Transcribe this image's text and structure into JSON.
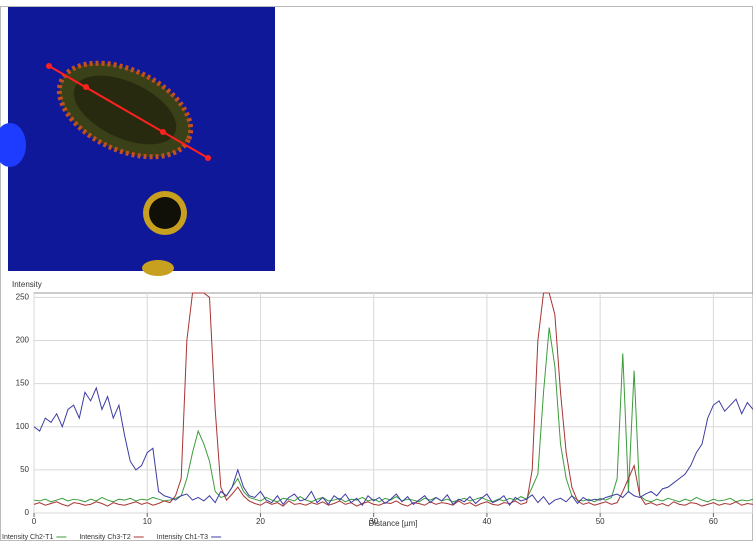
{
  "chart_data": {
    "type": "line",
    "ylabel": "Intensity",
    "xlabel": "Distance [µm]",
    "xlim": [
      0,
      63.5
    ],
    "ylim": [
      0,
      255
    ],
    "xticks": [
      0,
      10,
      20,
      30,
      40,
      50,
      60
    ],
    "yticks": [
      0,
      50,
      100,
      150,
      200,
      250
    ],
    "grid": true,
    "x": [
      0,
      0.5,
      1,
      1.5,
      2,
      2.5,
      3,
      3.5,
      4,
      4.5,
      5,
      5.5,
      6,
      6.5,
      7,
      7.5,
      8,
      8.5,
      9,
      9.5,
      10,
      10.5,
      11,
      11.5,
      12,
      12.5,
      13,
      13.5,
      14,
      14.5,
      15,
      15.5,
      16,
      16.5,
      17,
      17.5,
      18,
      18.5,
      19,
      19.5,
      20,
      20.5,
      21,
      21.5,
      22,
      22.5,
      23,
      23.5,
      24,
      24.5,
      25,
      25.5,
      26,
      26.5,
      27,
      27.5,
      28,
      28.5,
      29,
      29.5,
      30,
      30.5,
      31,
      31.5,
      32,
      32.5,
      33,
      33.5,
      34,
      34.5,
      35,
      35.5,
      36,
      36.5,
      37,
      37.5,
      38,
      38.5,
      39,
      39.5,
      40,
      40.5,
      41,
      41.5,
      42,
      42.5,
      43,
      43.5,
      44,
      44.5,
      45,
      45.5,
      46,
      46.5,
      47,
      47.5,
      48,
      48.5,
      49,
      49.5,
      50,
      50.5,
      51,
      51.5,
      52,
      52.5,
      53,
      53.5,
      54,
      54.5,
      55,
      55.5,
      56,
      56.5,
      57,
      57.5,
      58,
      58.5,
      59,
      59.5,
      60,
      60.5,
      61,
      61.5,
      62,
      62.5,
      63,
      63.5
    ],
    "series": [
      {
        "name": "Intensity Ch2-T1",
        "color": "#3c9c3c",
        "values": [
          15,
          14,
          16,
          13,
          15,
          17,
          14,
          16,
          15,
          13,
          16,
          14,
          18,
          15,
          13,
          16,
          15,
          17,
          14,
          16,
          15,
          18,
          16,
          14,
          15,
          17,
          20,
          40,
          70,
          95,
          80,
          60,
          25,
          18,
          20,
          30,
          40,
          25,
          18,
          16,
          14,
          18,
          15,
          13,
          17,
          16,
          14,
          19,
          15,
          13,
          16,
          18,
          14,
          15,
          17,
          13,
          16,
          15,
          18,
          14,
          16,
          13,
          17,
          15,
          19,
          14,
          16,
          15,
          13,
          17,
          15,
          18,
          14,
          16,
          13,
          15,
          17,
          14,
          16,
          18,
          15,
          13,
          16,
          14,
          17,
          15,
          19,
          16,
          30,
          45,
          140,
          215,
          170,
          80,
          40,
          20,
          15,
          14,
          16,
          13,
          17,
          15,
          18,
          40,
          185,
          25,
          165,
          20,
          15,
          13,
          16,
          14,
          17,
          15,
          13,
          16,
          14,
          18,
          15,
          13,
          16,
          14,
          15,
          17,
          13,
          15,
          14,
          16
        ]
      },
      {
        "name": "Intensity Ch3-T2",
        "color": "#a83434",
        "values": [
          10,
          12,
          9,
          11,
          13,
          10,
          8,
          12,
          11,
          9,
          10,
          13,
          11,
          8,
          12,
          10,
          9,
          11,
          13,
          10,
          12,
          9,
          11,
          14,
          12,
          20,
          40,
          200,
          255,
          255,
          255,
          250,
          120,
          30,
          15,
          22,
          30,
          20,
          14,
          11,
          9,
          13,
          10,
          12,
          8,
          14,
          10,
          11,
          9,
          12,
          10,
          13,
          9,
          11,
          14,
          10,
          12,
          8,
          11,
          13,
          10,
          9,
          12,
          11,
          14,
          10,
          8,
          12,
          11,
          9,
          13,
          10,
          12,
          11,
          9,
          14,
          10,
          12,
          8,
          11,
          13,
          10,
          9,
          12,
          11,
          14,
          10,
          12,
          50,
          200,
          255,
          255,
          230,
          140,
          70,
          30,
          14,
          10,
          12,
          9,
          11,
          13,
          10,
          12,
          25,
          40,
          55,
          20,
          10,
          12,
          9,
          11,
          8,
          13,
          10,
          9,
          12,
          11,
          8,
          10,
          12,
          9,
          11,
          10,
          13,
          9,
          11,
          10
        ]
      },
      {
        "name": "Intensity Ch1-T3",
        "color": "#3c3ca4",
        "values": [
          100,
          95,
          110,
          105,
          115,
          100,
          120,
          125,
          110,
          140,
          130,
          145,
          120,
          135,
          110,
          125,
          90,
          60,
          50,
          55,
          70,
          75,
          25,
          20,
          18,
          15,
          20,
          22,
          15,
          18,
          14,
          20,
          12,
          25,
          20,
          30,
          50,
          30,
          20,
          18,
          25,
          15,
          12,
          20,
          10,
          18,
          22,
          14,
          16,
          25,
          12,
          18,
          10,
          20,
          15,
          22,
          12,
          17,
          9,
          20,
          14,
          18,
          11,
          16,
          22,
          13,
          19,
          10,
          15,
          20,
          12,
          18,
          14,
          21,
          10,
          16,
          13,
          19,
          11,
          17,
          22,
          12,
          15,
          20,
          9,
          18,
          14,
          16,
          21,
          12,
          19,
          10,
          15,
          17,
          13,
          20,
          11,
          18,
          14,
          16,
          15,
          18,
          20,
          22,
          18,
          25,
          20,
          18,
          22,
          25,
          20,
          28,
          30,
          35,
          40,
          45,
          55,
          70,
          80,
          110,
          125,
          130,
          118,
          125,
          132,
          115,
          128,
          120
        ]
      }
    ]
  }
}
